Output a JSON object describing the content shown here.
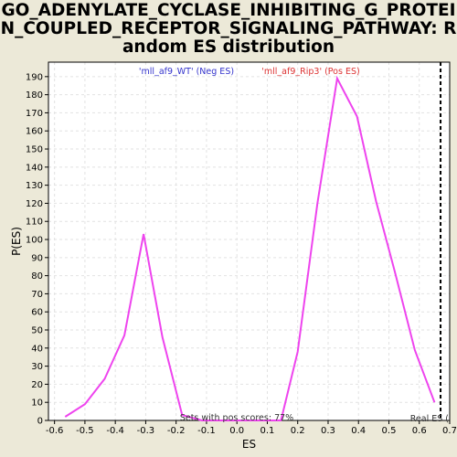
{
  "chart_data": {
    "type": "line",
    "title_lines": [
      "GO_ADENYLATE_CYCLASE_INHIBITING_G_PROTEI",
      "N_COUPLED_RECEPTOR_SIGNALING_PATHWAY: R",
      "andom ES distribution"
    ],
    "xlabel": "ES",
    "ylabel": "P(ES)",
    "xlim": [
      -0.62,
      0.7
    ],
    "ylim": [
      0,
      198
    ],
    "x_ticks": [
      -0.6,
      -0.5,
      -0.4,
      -0.3,
      -0.2,
      -0.1,
      0.0,
      0.1,
      0.2,
      0.3,
      0.4,
      0.5,
      0.6,
      0.7
    ],
    "x_tick_labels": [
      "-0.6",
      "-0.5",
      "-0.4",
      "-0.3",
      "-0.2",
      "-0.1",
      "0.0",
      "0.1",
      "0.2",
      "0.3",
      "0.4",
      "0.5",
      "0.6",
      "0.7"
    ],
    "y_ticks": [
      0,
      10,
      20,
      30,
      40,
      50,
      60,
      70,
      80,
      90,
      100,
      110,
      120,
      130,
      140,
      150,
      160,
      170,
      180,
      190
    ],
    "grid": true,
    "series": [
      {
        "color": "#ee44ee",
        "x": [
          -0.565,
          -0.5,
          -0.435,
          -0.37,
          -0.307,
          -0.245,
          -0.18,
          -0.115,
          0.145,
          0.2,
          0.265,
          0.33,
          0.395,
          0.458,
          0.52,
          0.585,
          0.65
        ],
        "y": [
          2,
          9,
          23,
          47,
          103,
          46,
          3,
          0,
          0,
          38,
          120,
          189,
          168,
          121,
          82,
          39,
          10
        ]
      }
    ],
    "legend": {
      "neg_label": "'mll_af9_WT' (Neg ES)",
      "neg_color": "#3333cc",
      "pos_label": "'mll_af9_Rip3' (Pos ES)",
      "pos_color": "#dd3333"
    },
    "real_es_x": 0.67,
    "real_es_label": "Real ES (",
    "annotation": "Sets with pos scores: 77%"
  }
}
